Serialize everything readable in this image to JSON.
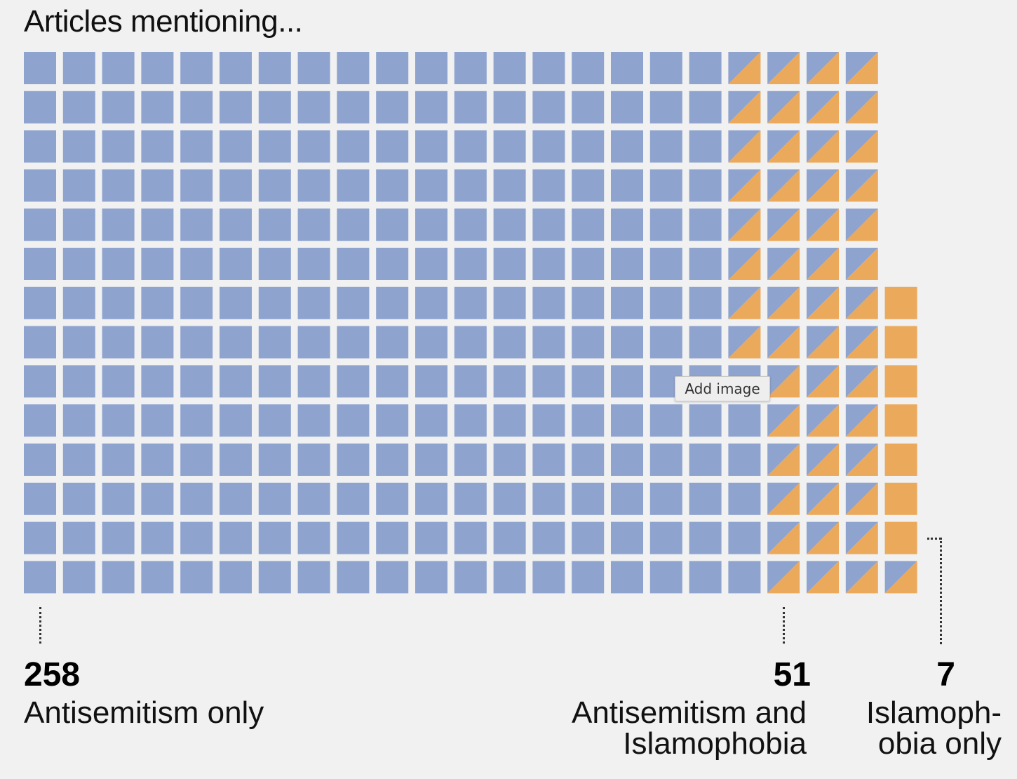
{
  "title": "Articles mentioning...",
  "colors": {
    "antisemitism": "#8fa3cf",
    "islamophobia": "#eba95c",
    "background": "#f0f1f0"
  },
  "chart_data": {
    "type": "waffle",
    "title": "Articles mentioning...",
    "unit": "article",
    "layout": "columns, bottom-up",
    "categories": [
      {
        "key": "antisemitism_only",
        "count_label": "258",
        "count": 258,
        "label_lines": [
          "Antisemitism only"
        ],
        "fill": "blue"
      },
      {
        "key": "both",
        "count_label": "51",
        "count": 51,
        "label_lines": [
          "Antisemitism and",
          "Islamophobia"
        ],
        "fill": "split"
      },
      {
        "key": "islamophobia_only",
        "count_label": "7",
        "count": 7,
        "label_lines": [
          "Islamoph-",
          "obia only"
        ],
        "fill": "orange"
      }
    ]
  },
  "tooltip": "Add image"
}
